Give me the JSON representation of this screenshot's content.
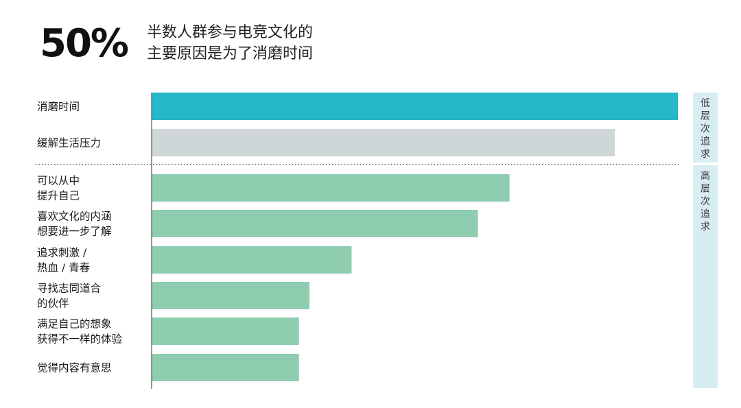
{
  "headline": {
    "stat": "50%",
    "subtitle_line1": "半数人群参与电竞文化的",
    "subtitle_line2": "主要原因是为了消磨时间"
  },
  "chart_data": {
    "type": "bar",
    "orientation": "horizontal",
    "categories": [
      [
        "消磨时间"
      ],
      [
        "缓解生活压力"
      ],
      [
        "可以从中",
        "提升自己"
      ],
      [
        "喜欢文化的内涵",
        "想要进一步了解"
      ],
      [
        "追求刺激 /",
        "热血 / 青春"
      ],
      [
        "寻找志同道合",
        "的伙伴"
      ],
      [
        "满足自己的想象",
        "获得不一样的体验"
      ],
      [
        "觉得内容有意思"
      ]
    ],
    "values": [
      50,
      44,
      34,
      31,
      19,
      15,
      14,
      14
    ],
    "value_unit": "%",
    "xlim": [
      0,
      50
    ],
    "groups": [
      {
        "label": "低层次追求",
        "members": [
          0,
          1
        ]
      },
      {
        "label": "高层次追求",
        "members": [
          2,
          3,
          4,
          5,
          6,
          7
        ]
      }
    ],
    "bar_colors": [
      "#25b8c8",
      "#cfd6d8",
      "#8ecdb0",
      "#8ecdb0",
      "#8ecdb0",
      "#8ecdb0",
      "#8ecdb0",
      "#8ecdb0"
    ],
    "band_color": "#d8edf1",
    "axis_color": "#555555",
    "divider_style": "dotted",
    "grid": false
  }
}
